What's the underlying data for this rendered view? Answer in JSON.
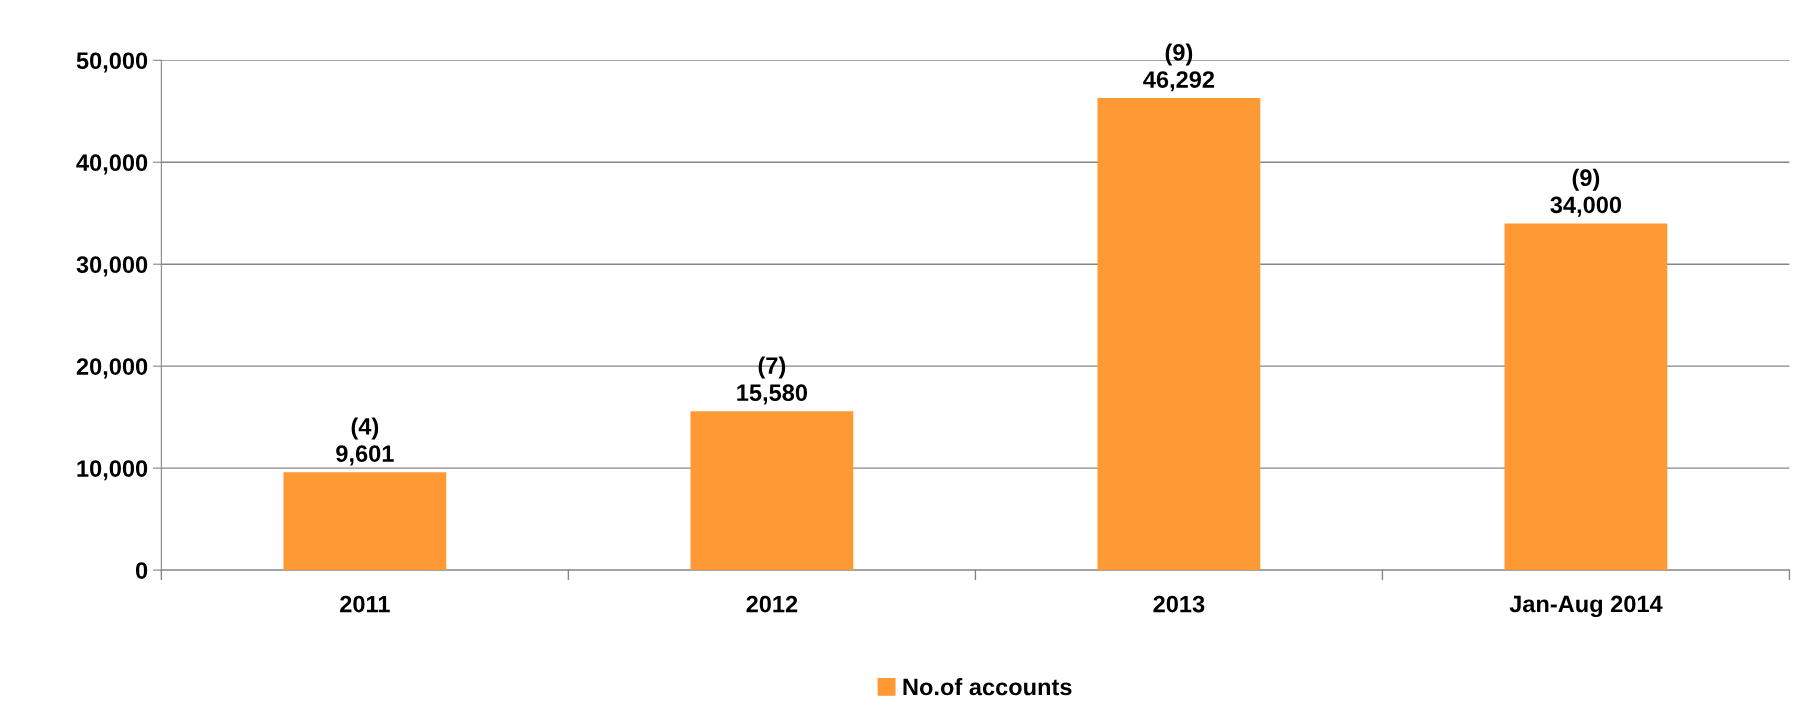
{
  "chart_data": {
    "type": "bar",
    "categories": [
      "2011",
      "2012",
      "2013",
      "Jan-Aug 2014"
    ],
    "series": [
      {
        "name": "No.of accounts",
        "color": "#ff9933",
        "values": [
          9601,
          15580,
          46292,
          34000
        ],
        "value_labels": [
          "(4)\n9,601",
          "(7)\n15,580",
          "(9)\n46,292",
          "(9)\n34,000"
        ]
      }
    ],
    "ylim": [
      0,
      50000
    ],
    "yticks": [
      0,
      {
        "value": 10000,
        "label": "10,000"
      },
      {
        "value": 20000,
        "label": "20,000"
      },
      {
        "value": 30000,
        "label": "30,000"
      },
      {
        "value": 40000,
        "label": "40,000"
      },
      {
        "value": 50000,
        "label": "50,000"
      }
    ],
    "grid": "y",
    "legend": "bottom"
  }
}
